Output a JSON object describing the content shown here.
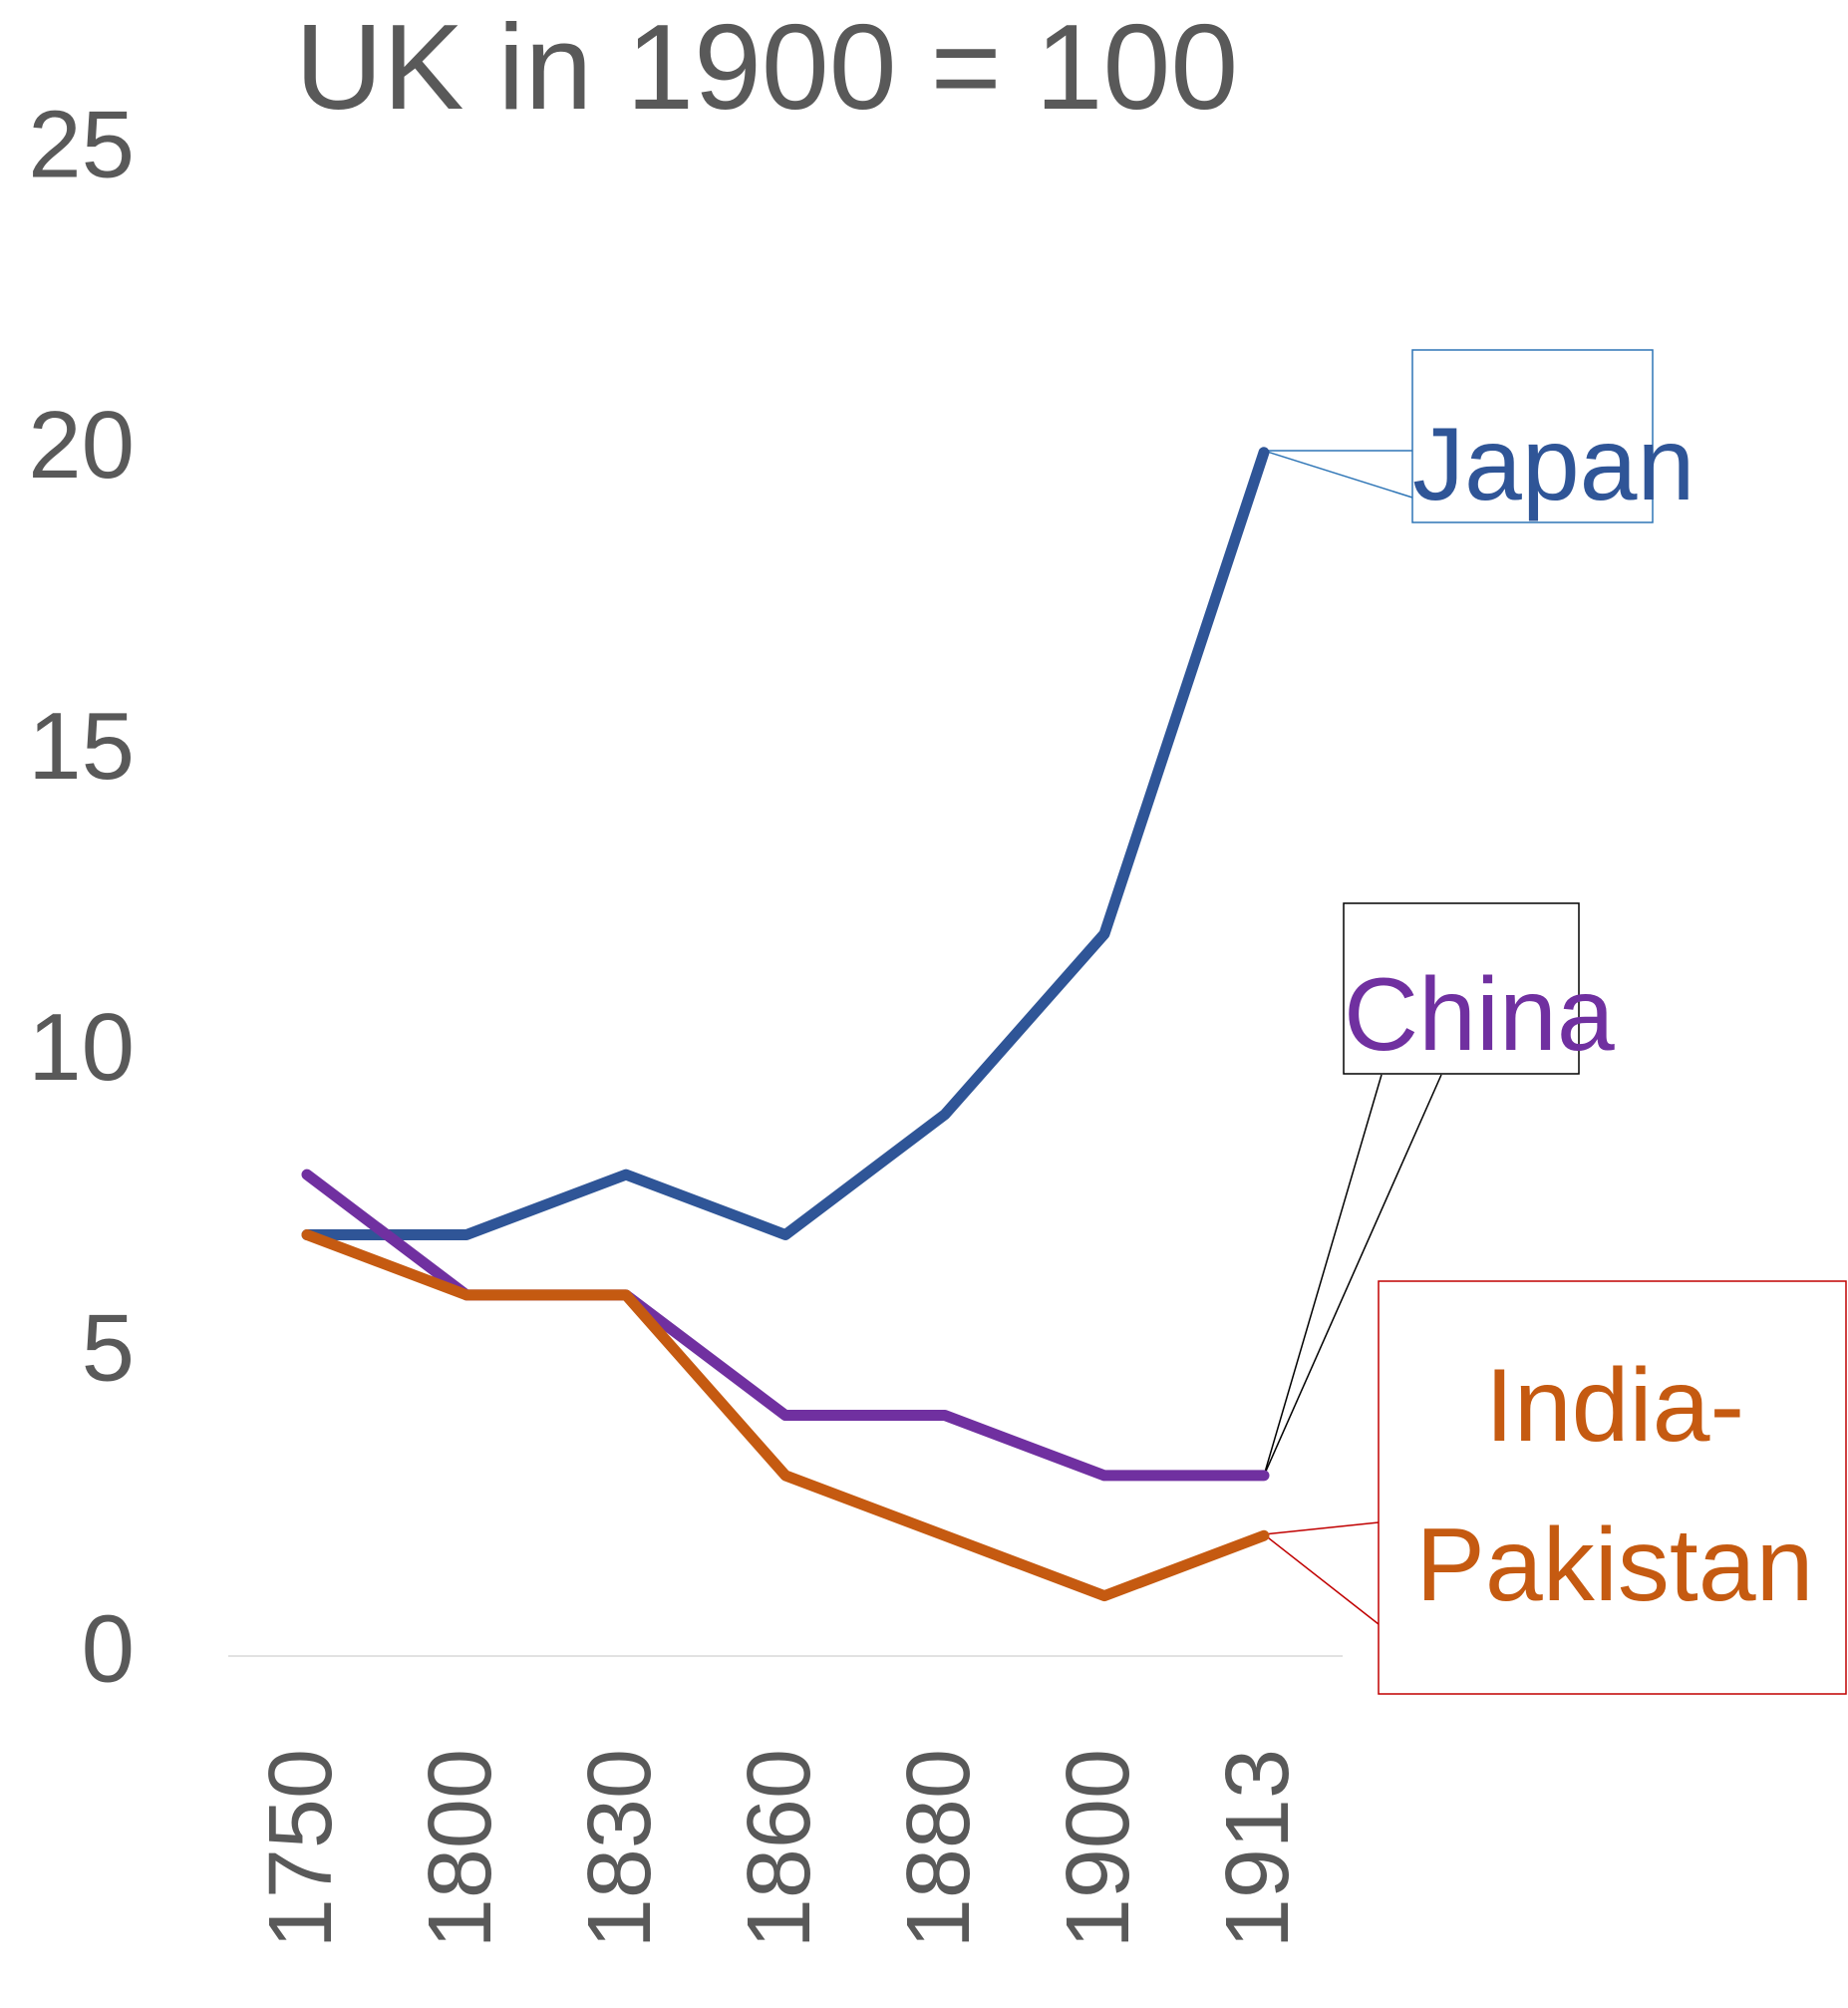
{
  "chart_data": {
    "type": "line",
    "title": "UK in 1900 = 100",
    "categories": [
      "1750",
      "1800",
      "1830",
      "1860",
      "1880",
      "1900",
      "1913"
    ],
    "series": [
      {
        "name": "Japan",
        "color": "#2f5597",
        "values": [
          7,
          7,
          8,
          7,
          9,
          12,
          20
        ]
      },
      {
        "name": "China",
        "color": "#7030a0",
        "values": [
          8,
          6,
          6,
          4,
          4,
          3,
          3
        ]
      },
      {
        "name": "India-Pakistan",
        "color": "#c55a11",
        "values": [
          7,
          6,
          6,
          3,
          2,
          1,
          2
        ]
      }
    ],
    "ylim": [
      0,
      25
    ],
    "yticks": [
      0,
      5,
      10,
      15,
      20,
      25
    ],
    "grid": false
  }
}
